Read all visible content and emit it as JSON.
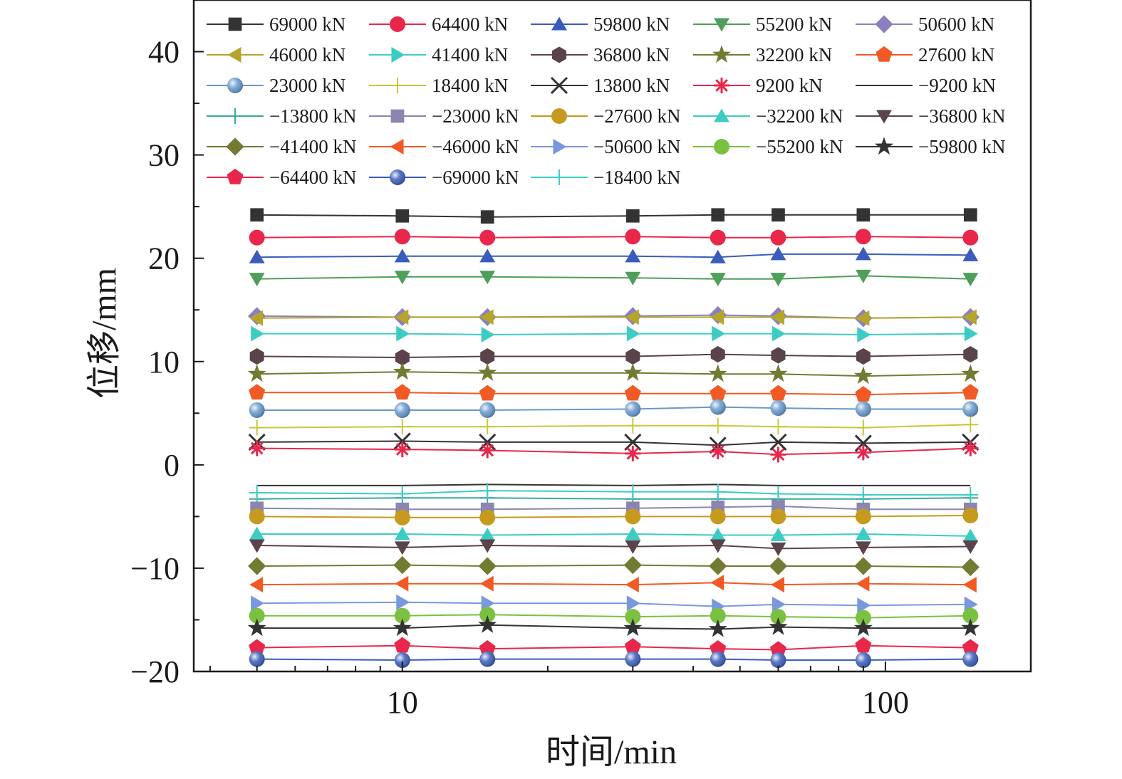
{
  "chart_data": {
    "type": "line",
    "xscale": "log",
    "xlabel": "时间/min",
    "ylabel": "位移/mm",
    "xlim": [
      3.7,
      200
    ],
    "ylim": [
      -20,
      45
    ],
    "xticks": [
      10,
      100
    ],
    "yticks": [
      -20,
      -10,
      0,
      10,
      20,
      30,
      40
    ],
    "grid": false,
    "legend_position": "top",
    "x": [
      5,
      10,
      15,
      30,
      45,
      60,
      90,
      150
    ],
    "series": [
      {
        "name": "69000 kN",
        "marker": "square",
        "color": "#333333",
        "values": [
          24.2,
          24.1,
          24.0,
          24.1,
          24.2,
          24.2,
          24.2,
          24.2
        ]
      },
      {
        "name": "64400 kN",
        "marker": "circle",
        "color": "#e8274b",
        "values": [
          22.0,
          22.1,
          22.0,
          22.1,
          22.0,
          22.0,
          22.1,
          22.0
        ]
      },
      {
        "name": "59800 kN",
        "marker": "triangle-up",
        "color": "#3a5dbb",
        "values": [
          20.1,
          20.2,
          20.2,
          20.2,
          20.1,
          20.4,
          20.4,
          20.3
        ]
      },
      {
        "name": "55200 kN",
        "marker": "triangle-down",
        "color": "#4f9e5a",
        "values": [
          18.0,
          18.2,
          18.2,
          18.1,
          18.0,
          18.0,
          18.3,
          18.0
        ]
      },
      {
        "name": "50600 kN",
        "marker": "diamond",
        "color": "#8d7fbf",
        "values": [
          14.4,
          14.3,
          14.3,
          14.4,
          14.5,
          14.4,
          14.2,
          14.3
        ]
      },
      {
        "name": "46000 kN",
        "marker": "triangle-left",
        "color": "#b5a62a",
        "values": [
          14.2,
          14.3,
          14.3,
          14.3,
          14.3,
          14.3,
          14.2,
          14.3
        ]
      },
      {
        "name": "41400 kN",
        "marker": "triangle-right",
        "color": "#3dccc4",
        "values": [
          12.7,
          12.7,
          12.6,
          12.7,
          12.7,
          12.7,
          12.6,
          12.7
        ]
      },
      {
        "name": "36800 kN",
        "marker": "hexagon",
        "color": "#5a434a",
        "values": [
          10.5,
          10.4,
          10.5,
          10.5,
          10.7,
          10.6,
          10.5,
          10.7
        ]
      },
      {
        "name": "32200 kN",
        "marker": "star",
        "color": "#737a32",
        "values": [
          8.8,
          9.0,
          8.9,
          8.9,
          8.8,
          8.8,
          8.6,
          8.8
        ]
      },
      {
        "name": "27600 kN",
        "marker": "pentagon",
        "color": "#f15a24",
        "values": [
          7.0,
          7.0,
          6.9,
          6.9,
          6.9,
          6.9,
          6.8,
          7.0
        ]
      },
      {
        "name": "23000 kN",
        "marker": "sphere",
        "color": "#6699cc",
        "values": [
          5.3,
          5.3,
          5.3,
          5.4,
          5.6,
          5.5,
          5.4,
          5.4
        ]
      },
      {
        "name": "18400 kN",
        "marker": "plus",
        "color": "#c8c83c",
        "values": [
          3.6,
          3.7,
          3.7,
          3.8,
          3.8,
          3.7,
          3.6,
          3.9
        ]
      },
      {
        "name": "13800 kN",
        "marker": "x",
        "color": "#333333",
        "values": [
          2.2,
          2.3,
          2.2,
          2.2,
          1.9,
          2.2,
          2.1,
          2.2
        ]
      },
      {
        "name": "9200 kN",
        "marker": "asterisk",
        "color": "#e8274b",
        "values": [
          1.6,
          1.5,
          1.4,
          1.1,
          1.3,
          1.0,
          1.2,
          1.6
        ]
      },
      {
        "name": "-9200 kN",
        "marker": "none",
        "color": "#333333",
        "values": [
          -2.0,
          -2.0,
          -1.9,
          -2.0,
          -1.9,
          -2.0,
          -2.0,
          -2.0
        ]
      },
      {
        "name": "-13800 kN",
        "marker": "plus",
        "color": "#3aa99c",
        "values": [
          -3.3,
          -3.2,
          -3.2,
          -3.3,
          -3.3,
          -3.3,
          -3.3,
          -3.2
        ]
      },
      {
        "name": "-23000 kN",
        "marker": "square",
        "color": "#8a86b0",
        "values": [
          -4.2,
          -4.3,
          -4.3,
          -4.2,
          -4.1,
          -4.0,
          -4.3,
          -4.3
        ]
      },
      {
        "name": "-27600 kN",
        "marker": "circle",
        "color": "#c69a1e",
        "values": [
          -5.0,
          -5.1,
          -5.1,
          -5.0,
          -5.0,
          -5.0,
          -5.0,
          -4.9
        ]
      },
      {
        "name": "-32200 kN",
        "marker": "triangle-up",
        "color": "#3dccc4",
        "values": [
          -6.7,
          -6.7,
          -6.8,
          -6.7,
          -6.8,
          -6.8,
          -6.7,
          -6.9
        ]
      },
      {
        "name": "-36800 kN",
        "marker": "triangle-down",
        "color": "#5a434a",
        "values": [
          -7.8,
          -8.0,
          -7.8,
          -7.9,
          -7.8,
          -8.1,
          -8.0,
          -7.9
        ]
      },
      {
        "name": "-41400 kN",
        "marker": "diamond",
        "color": "#737a32",
        "values": [
          -9.8,
          -9.7,
          -9.8,
          -9.7,
          -9.8,
          -9.8,
          -9.8,
          -9.9
        ]
      },
      {
        "name": "-46000 kN",
        "marker": "triangle-left",
        "color": "#f15a24",
        "values": [
          -11.6,
          -11.5,
          -11.5,
          -11.6,
          -11.4,
          -11.6,
          -11.5,
          -11.6
        ]
      },
      {
        "name": "-50600 kN",
        "marker": "triangle-right",
        "color": "#7a98dd",
        "values": [
          -13.4,
          -13.3,
          -13.4,
          -13.4,
          -13.7,
          -13.5,
          -13.6,
          -13.5
        ]
      },
      {
        "name": "-55200 kN",
        "marker": "circle",
        "color": "#7ac142",
        "values": [
          -14.6,
          -14.6,
          -14.5,
          -14.7,
          -14.6,
          -14.7,
          -14.8,
          -14.6
        ]
      },
      {
        "name": "-59800 kN",
        "marker": "star",
        "color": "#333333",
        "values": [
          -15.8,
          -15.8,
          -15.5,
          -15.8,
          -15.9,
          -15.7,
          -15.8,
          -15.8
        ]
      },
      {
        "name": "-64400 kN",
        "marker": "pentagon",
        "color": "#e8274b",
        "values": [
          -17.7,
          -17.5,
          -17.8,
          -17.6,
          -17.8,
          -17.9,
          -17.5,
          -17.7
        ]
      },
      {
        "name": "-69000 kN",
        "marker": "sphere",
        "color": "#3a5dbb",
        "values": [
          -18.8,
          -18.9,
          -18.8,
          -18.8,
          -18.8,
          -18.9,
          -18.9,
          -18.8
        ]
      },
      {
        "name": "-18400 kN",
        "marker": "plus",
        "color": "#3dccc4",
        "values": [
          -2.7,
          -2.8,
          -2.5,
          -2.6,
          -2.6,
          -2.8,
          -2.9,
          -2.9
        ]
      }
    ]
  }
}
